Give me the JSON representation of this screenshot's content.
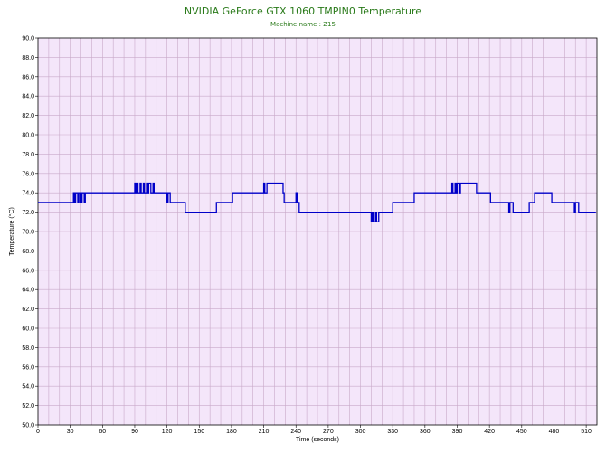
{
  "chart_data": {
    "type": "line",
    "title": "NVIDIA GeForce GTX 1060 TMPIN0 Temperature",
    "subtitle": "Machine name : Z15",
    "xlabel": "Time (seconds)",
    "ylabel": "Temperature (°C)",
    "xlim": [
      0,
      520
    ],
    "ylim": [
      50,
      90
    ],
    "x_ticks": [
      0,
      30,
      60,
      90,
      120,
      150,
      180,
      210,
      240,
      270,
      300,
      330,
      360,
      390,
      420,
      450,
      480,
      510
    ],
    "y_ticks": [
      50,
      52,
      54,
      56,
      58,
      60,
      62,
      64,
      66,
      68,
      70,
      72,
      74,
      76,
      78,
      80,
      82,
      84,
      86,
      88,
      90
    ],
    "x_minor_step": 10,
    "grid": true,
    "legend": "none",
    "series": [
      {
        "x": [
          0,
          33,
          33,
          34,
          34,
          35,
          35,
          37,
          37,
          38,
          38,
          40,
          40,
          41,
          41,
          43,
          43,
          44,
          44,
          46,
          46,
          90,
          90,
          91,
          91,
          92,
          92,
          93,
          93,
          95,
          95,
          96,
          96,
          98,
          98,
          99,
          99,
          101,
          101,
          102,
          102,
          103,
          103,
          105,
          105,
          107,
          107,
          108,
          108,
          120,
          120,
          121,
          121,
          123,
          123,
          137,
          137,
          166,
          166,
          181,
          181,
          210,
          210,
          211,
          211,
          213,
          213,
          228,
          228,
          229,
          229,
          240,
          240,
          241,
          241,
          243,
          243,
          272,
          272,
          310,
          310,
          311,
          311,
          312,
          312,
          314,
          314,
          315,
          315,
          317,
          317,
          318,
          318,
          330,
          330,
          350,
          350,
          385,
          385,
          386,
          386,
          388,
          388,
          389,
          389,
          390,
          390,
          392,
          392,
          393,
          393,
          394,
          394,
          408,
          408,
          421,
          421,
          438,
          438,
          439,
          439,
          442,
          442,
          457,
          457,
          458,
          458,
          462,
          462,
          478,
          478,
          499,
          499,
          500,
          500,
          503,
          503,
          519
        ],
        "y": [
          73,
          73,
          74,
          74,
          73,
          73,
          74,
          74,
          73,
          73,
          74,
          74,
          73,
          73,
          74,
          74,
          73,
          73,
          74,
          74,
          74,
          74,
          75,
          75,
          74,
          74,
          75,
          75,
          74,
          74,
          75,
          75,
          74,
          74,
          75,
          75,
          74,
          74,
          75,
          75,
          74,
          74,
          75,
          75,
          74,
          74,
          75,
          75,
          74,
          74,
          73,
          73,
          74,
          74,
          73,
          73,
          72,
          72,
          73,
          73,
          74,
          74,
          75,
          75,
          74,
          74,
          75,
          75,
          74,
          74,
          73,
          73,
          74,
          74,
          73,
          73,
          72,
          72,
          72,
          72,
          71,
          71,
          72,
          72,
          71,
          71,
          72,
          72,
          71,
          71,
          72,
          72,
          72,
          72,
          73,
          73,
          74,
          74,
          75,
          75,
          74,
          74,
          75,
          75,
          74,
          74,
          75,
          75,
          74,
          74,
          75,
          75,
          75,
          75,
          74,
          74,
          73,
          73,
          72,
          72,
          73,
          73,
          72,
          72,
          73,
          73,
          73,
          73,
          74,
          74,
          73,
          73,
          72,
          72,
          73,
          73,
          72,
          72
        ]
      }
    ]
  },
  "colors": {
    "plot_background": "#f4e6fa",
    "grid": "#c9a9c9",
    "line": "#0000c8",
    "title": "#2a7a1a",
    "axis": "#000000"
  }
}
